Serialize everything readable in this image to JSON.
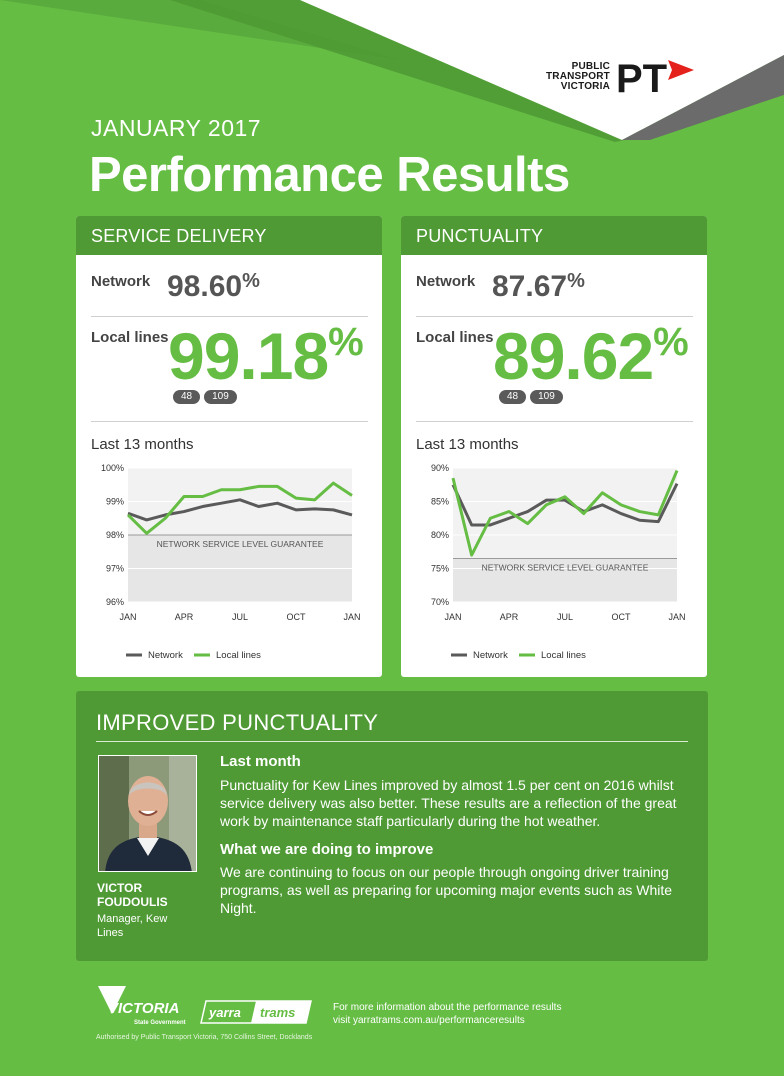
{
  "header": {
    "month": "JANUARY 2017",
    "title": "Performance Results",
    "logo_text": [
      "PUBLIC",
      "TRANSPORT",
      "VICTORIA"
    ],
    "logo_mark": "PT"
  },
  "service_delivery": {
    "heading": "SERVICE DELIVERY",
    "network_label": "Network",
    "network_value": "98.60",
    "local_label": "Local lines",
    "local_value": "99.18",
    "percent_sign": "%",
    "routes": [
      "48",
      "109"
    ],
    "chart_title": "Last 13 months",
    "guarantee_label": "NETWORK SERVICE LEVEL GUARANTEE"
  },
  "punctuality": {
    "heading": "PUNCTUALITY",
    "network_label": "Network",
    "network_value": "87.67",
    "local_label": "Local lines",
    "local_value": "89.62",
    "percent_sign": "%",
    "routes": [
      "48",
      "109"
    ],
    "chart_title": "Last 13 months",
    "guarantee_label": "NETWORK SERVICE LEVEL GUARANTEE"
  },
  "chart_data": [
    {
      "type": "line",
      "title": "Last 13 months",
      "x_ticks": [
        "JAN",
        "APR",
        "JUL",
        "OCT",
        "JAN"
      ],
      "x_tick_index": [
        0,
        3,
        6,
        9,
        12
      ],
      "y_ticks": [
        "100%",
        "99%",
        "98%",
        "97%",
        "96%"
      ],
      "y_tick_values": [
        100,
        99,
        98,
        97,
        96
      ],
      "ylim": [
        96,
        100
      ],
      "guarantee": 98,
      "series": [
        {
          "name": "Network",
          "color": "#5a5a5a",
          "values": [
            98.65,
            98.45,
            98.6,
            98.7,
            98.85,
            98.95,
            99.05,
            98.85,
            98.95,
            98.75,
            98.78,
            98.75,
            98.6
          ]
        },
        {
          "name": "Local lines",
          "color": "#65bd44",
          "values": [
            98.6,
            98.05,
            98.5,
            99.15,
            99.15,
            99.35,
            99.35,
            99.45,
            99.45,
            99.1,
            99.05,
            99.55,
            99.18
          ]
        }
      ],
      "legend": "bottom"
    },
    {
      "type": "line",
      "title": "Last 13 months",
      "x_ticks": [
        "JAN",
        "APR",
        "JUL",
        "OCT",
        "JAN"
      ],
      "x_tick_index": [
        0,
        3,
        6,
        9,
        12
      ],
      "y_ticks": [
        "90%",
        "85%",
        "80%",
        "75%",
        "70%"
      ],
      "y_tick_values": [
        90,
        85,
        80,
        75,
        70
      ],
      "ylim": [
        70,
        90
      ],
      "guarantee": 76.5,
      "series": [
        {
          "name": "Network",
          "color": "#5a5a5a",
          "values": [
            87.5,
            81.5,
            81.5,
            82.5,
            83.5,
            85.2,
            85.2,
            83.5,
            84.5,
            83.2,
            82.2,
            82.0,
            87.67
          ]
        },
        {
          "name": "Local lines",
          "color": "#65bd44",
          "values": [
            88.5,
            77.0,
            82.5,
            83.5,
            81.7,
            84.5,
            85.7,
            83.2,
            86.3,
            84.5,
            83.5,
            83.0,
            89.62
          ]
        }
      ],
      "legend": "bottom"
    }
  ],
  "improved": {
    "heading": "IMPROVED PUNCTUALITY",
    "person_name": "VICTOR FOUDOULIS",
    "person_role": "Manager, Kew Lines",
    "last_month_heading": "Last month",
    "last_month_text": "Punctuality for Kew Lines improved by almost 1.5 per cent on 2016 whilst service delivery was also better. These results are a reflection of the great work by maintenance staff particularly during the hot weather.",
    "improve_heading": "What we are doing to improve",
    "improve_text": "We are continuing to focus on our people through ongoing driver training programs, as well as preparing for upcoming major events such as White Night."
  },
  "footer": {
    "victoria_logo": "VICTORIA",
    "victoria_sub": "State Government",
    "yarra_logo": "yarra trams",
    "more_line1": "For more information about the performance results",
    "more_line2_prefix": "visit ",
    "more_url": "yarratrams.com.au/performanceresults",
    "authorised": "Authorised by Public Transport Victoria, 750 Collins Street, Docklands"
  },
  "colors": {
    "background": "#65bd44",
    "header_bar": "#4f9a35",
    "network_line": "#5a5a5a",
    "local_line": "#65bd44",
    "pt_red": "#e4221b"
  }
}
